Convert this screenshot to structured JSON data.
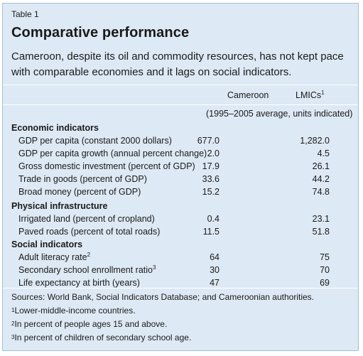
{
  "header": {
    "table_label": "Table 1",
    "title": "Comparative performance",
    "subtitle": "Cameroon, despite its oil and commodity resources, has not kept pace with comparable economies and it lags on social indicators."
  },
  "columns": {
    "col1": "Cameroon",
    "col2": "LMICs",
    "col2_sup": "1",
    "subheader": "(1995–2005 average, units indicated)"
  },
  "sections": {
    "economic": {
      "heading": "Economic indicators",
      "rows": [
        {
          "label": "GDP per capita (constant 2000 dollars)",
          "sup": "",
          "cameroon": "677.0",
          "lmics": "1,282.0"
        },
        {
          "label": "GDP per capita growth (annual percent change)",
          "sup": "",
          "cameroon": "2.0",
          "lmics": "4.5"
        },
        {
          "label": "Gross domestic investment (percent of GDP)",
          "sup": "",
          "cameroon": "17.9",
          "lmics": "26.1"
        },
        {
          "label": "Trade in goods (percent of GDP)",
          "sup": "",
          "cameroon": "33.6",
          "lmics": "44.2"
        },
        {
          "label": "Broad money (percent of GDP)",
          "sup": "",
          "cameroon": "15.2",
          "lmics": "74.8"
        }
      ]
    },
    "physical": {
      "heading": "Physical infrastructure",
      "rows": [
        {
          "label": "Irrigated land (percent of cropland)",
          "sup": "",
          "cameroon": "0.4",
          "lmics": "23.1"
        },
        {
          "label": "Paved roads (percent of total roads)",
          "sup": "",
          "cameroon": "11.5",
          "lmics": "51.8"
        }
      ]
    },
    "social": {
      "heading": "Social indicators",
      "rows": [
        {
          "label": "Adult literacy rate",
          "sup": "2",
          "cameroon": "64",
          "lmics": "75"
        },
        {
          "label": "Secondary school enrollment ratio",
          "sup": "3",
          "cameroon": "30",
          "lmics": "70"
        },
        {
          "label": "Life expectancy at birth (years)",
          "sup": "",
          "cameroon": "47",
          "lmics": "69"
        }
      ]
    }
  },
  "notes": {
    "source": "Sources: World Bank, Social Indicators Database; and Cameroonian authorities.",
    "fn1_mark": "1",
    "fn1": "Lower-middle-income countries.",
    "fn2_mark": "2",
    "fn2": "In percent of people ages 15 and above.",
    "fn3_mark": "3",
    "fn3": "In percent of children of secondary school age."
  }
}
